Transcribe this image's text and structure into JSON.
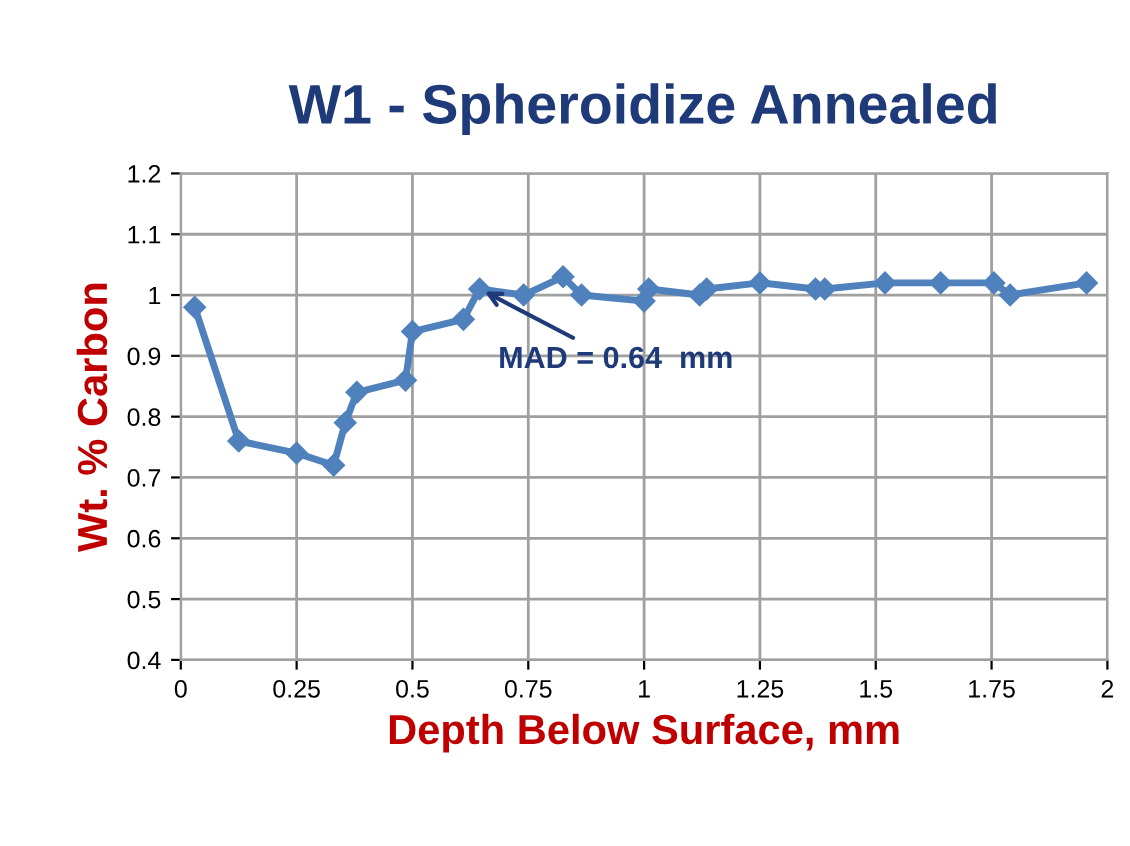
{
  "chart_data": {
    "type": "line",
    "title": "W1 - Spheroidize Annealed",
    "xlabel": "Depth Below Surface, mm",
    "ylabel": "Wt. % Carbon",
    "x": [
      0.03,
      0.125,
      0.25,
      0.33,
      0.355,
      0.38,
      0.485,
      0.5,
      0.61,
      0.645,
      0.74,
      0.825,
      0.865,
      1.0,
      1.01,
      1.12,
      1.135,
      1.25,
      1.37,
      1.39,
      1.52,
      1.64,
      1.755,
      1.79,
      1.955
    ],
    "series": [
      {
        "color": "#4f81bd",
        "values": [
          0.98,
          0.76,
          0.74,
          0.72,
          0.79,
          0.84,
          0.86,
          0.94,
          0.96,
          1.01,
          1.0,
          1.03,
          1.0,
          0.99,
          1.01,
          1.0,
          1.01,
          1.02,
          1.01,
          1.01,
          1.02,
          1.02,
          1.02,
          1.0,
          1.02
        ]
      }
    ],
    "annotations": [
      {
        "text": "MAD = 0.64  mm",
        "x": 0.645,
        "y": 1.01
      }
    ],
    "xlim": [
      0,
      2
    ],
    "xticks": [
      0,
      0.25,
      0.5,
      0.75,
      1,
      1.25,
      1.5,
      1.75,
      2
    ],
    "ylim": [
      0.4,
      1.2
    ],
    "yticks": [
      0.4,
      0.5,
      0.6,
      0.7,
      0.8,
      0.9,
      1,
      1.1,
      1.2
    ],
    "grid": true,
    "marker": "diamond",
    "line_style": "solid",
    "legend": false
  }
}
